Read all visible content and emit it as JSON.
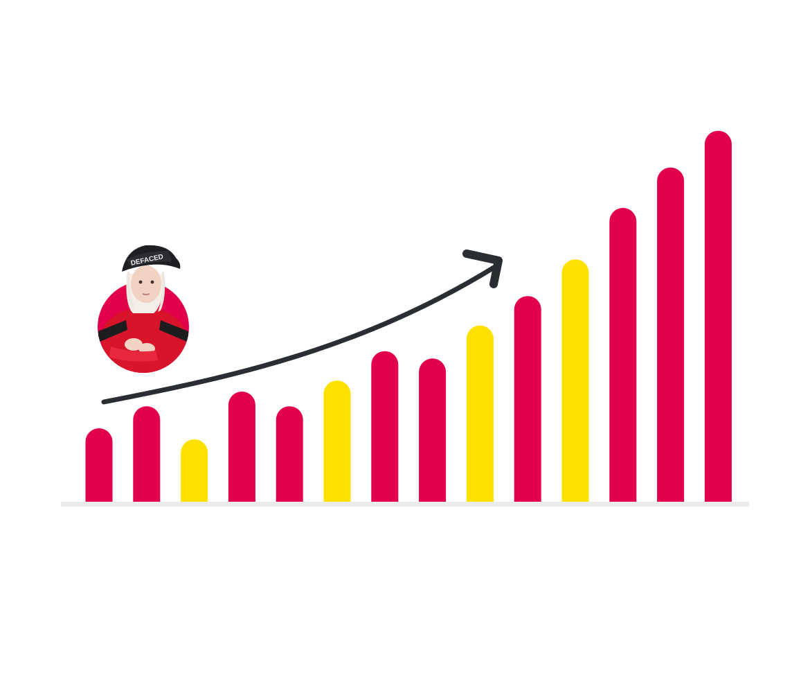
{
  "colors": {
    "primary": "#e2004a",
    "highlight": "#ffe100",
    "arrow": "#2a2d31",
    "baseline": "#ebebeb",
    "background": "#ffffff"
  },
  "avatar": {
    "hat_text": "DEFACED",
    "icon": "avatar-person-icon"
  },
  "chart_data": {
    "type": "bar",
    "title": "",
    "xlabel": "",
    "ylabel": "",
    "ylim": [
      0,
      100
    ],
    "grid": false,
    "legend": "none",
    "trend_arrow": "upward",
    "values": [
      20,
      26,
      17,
      30,
      26,
      33,
      41,
      39,
      48,
      56,
      66,
      80,
      91,
      101
    ],
    "colors": [
      "primary",
      "primary",
      "highlight",
      "primary",
      "primary",
      "highlight",
      "primary",
      "primary",
      "highlight",
      "primary",
      "highlight",
      "primary",
      "primary",
      "primary"
    ]
  }
}
